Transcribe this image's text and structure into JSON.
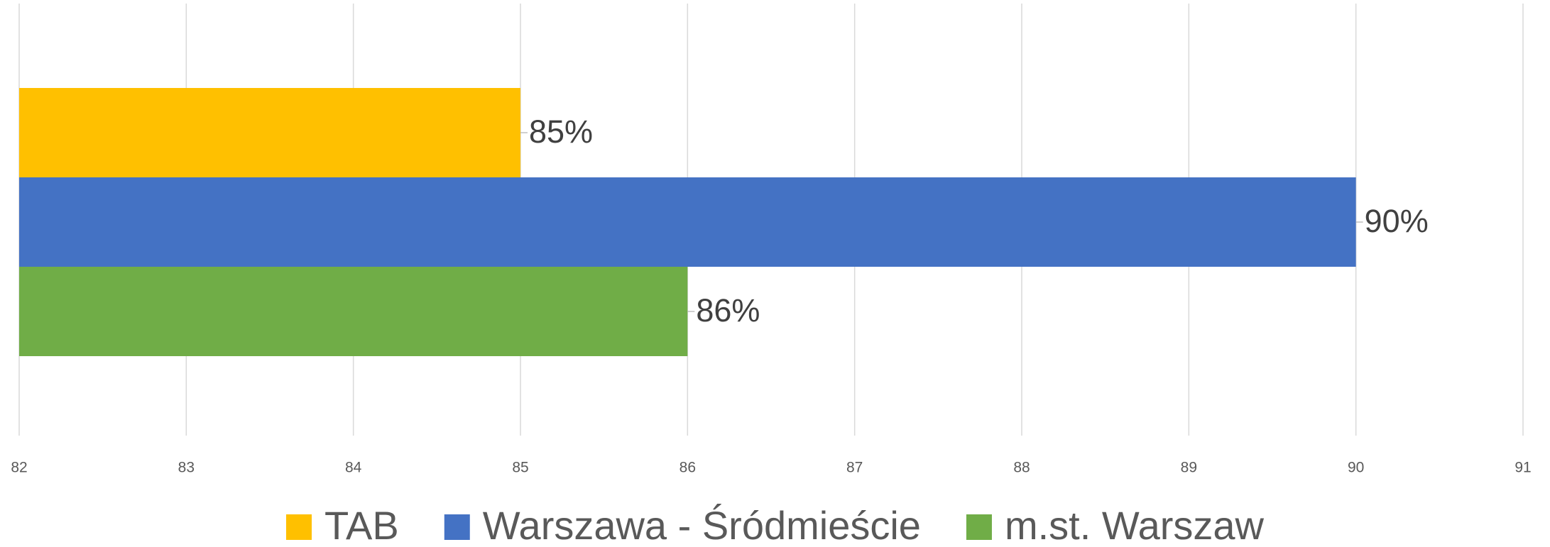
{
  "chart_data": {
    "type": "bar",
    "orientation": "horizontal",
    "categories": [
      null
    ],
    "series": [
      {
        "name": "TAB",
        "color": "#ffc000",
        "values": [
          85
        ],
        "value_labels": [
          "85%"
        ]
      },
      {
        "name": "Warszawa - Śródmieście",
        "color": "#4472c4",
        "values": [
          90
        ],
        "value_labels": [
          "90%"
        ]
      },
      {
        "name": "m.st. Warszaw",
        "color": "#70ad47",
        "values": [
          86
        ],
        "value_labels": [
          "86%"
        ]
      }
    ],
    "xlim": [
      82,
      91
    ],
    "xticks": [
      82,
      83,
      84,
      85,
      86,
      87,
      88,
      89,
      90,
      91
    ],
    "grid": true,
    "legend": "bottom"
  }
}
